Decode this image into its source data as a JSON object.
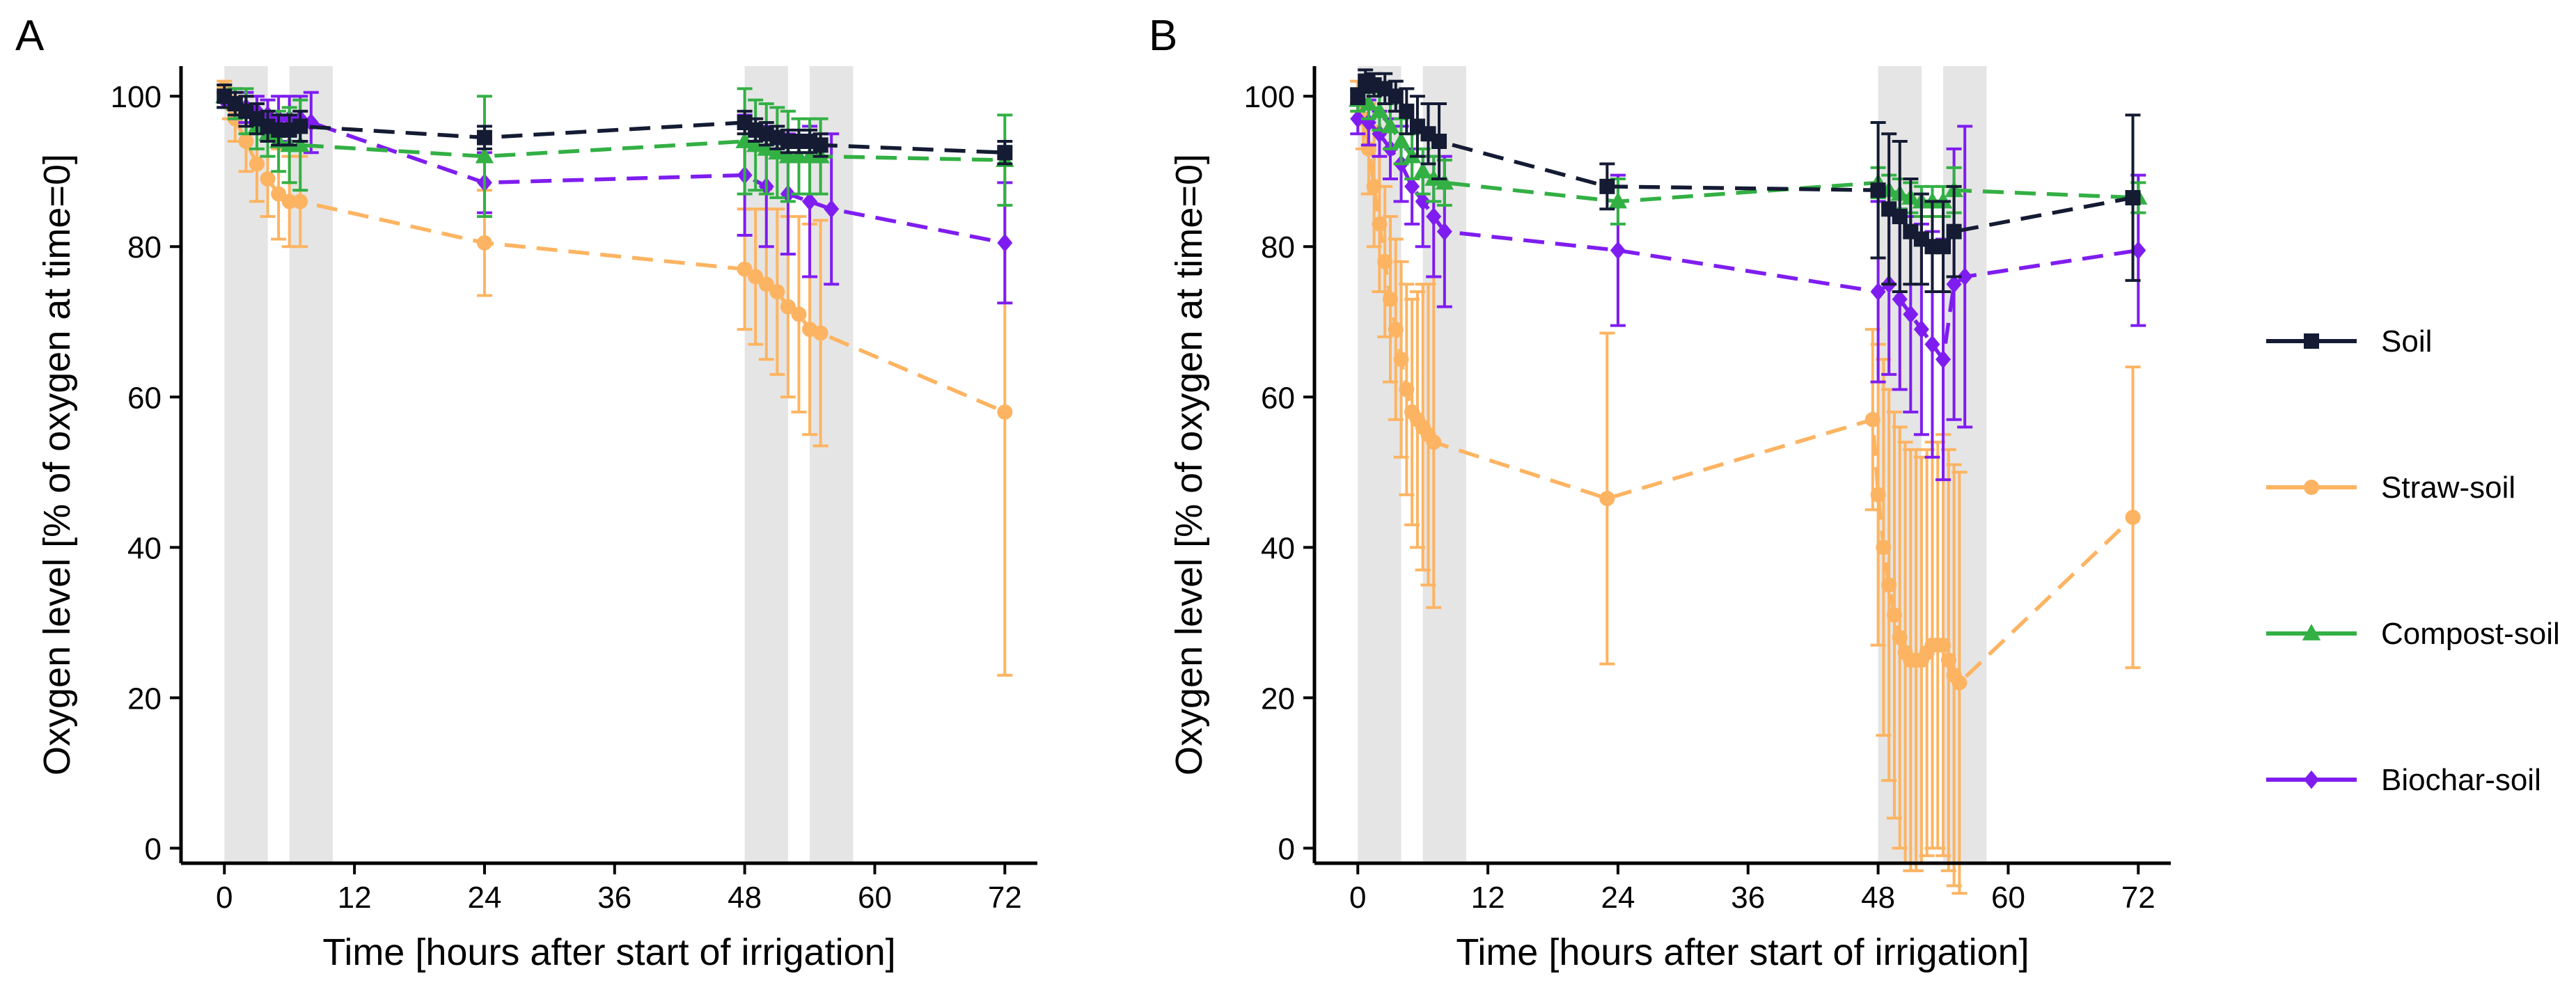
{
  "chart_data": [
    {
      "type": "line",
      "panel_label": "A",
      "xlabel": "Time [hours after start of irrigation]",
      "ylabel": "Oxygen level [% of oxygen at time=0]",
      "xlim": [
        -4,
        75
      ],
      "ylim": [
        -2,
        104
      ],
      "xticks": [
        0,
        12,
        24,
        36,
        48,
        60,
        72
      ],
      "yticks": [
        0,
        20,
        40,
        60,
        80,
        100
      ],
      "irrigation_periods": [
        [
          0,
          4
        ],
        [
          6,
          10
        ],
        [
          48,
          52
        ],
        [
          54,
          58
        ]
      ],
      "series": [
        {
          "name": "Soil",
          "x": [
            0,
            1,
            2,
            3,
            4,
            5,
            6,
            7,
            24,
            48,
            49,
            50,
            51,
            52,
            53,
            54,
            55,
            72
          ],
          "y": [
            100,
            99,
            98,
            97,
            96,
            95.5,
            95.5,
            96,
            94.5,
            96.5,
            95.5,
            95,
            94.5,
            94,
            94,
            94,
            93.5,
            92.5
          ],
          "err": [
            1.5,
            1.5,
            2,
            2,
            2,
            2,
            2,
            2,
            1.5,
            1.5,
            1.5,
            1.5,
            1.5,
            1.5,
            1.5,
            1.5,
            1.5,
            1.5
          ]
        },
        {
          "name": "Straw-soil",
          "x": [
            0,
            0.5,
            1,
            2,
            3,
            4,
            5,
            6,
            7,
            24,
            48,
            49,
            50,
            51,
            52,
            53,
            54,
            55,
            72
          ],
          "y": [
            101,
            99,
            97,
            94,
            91,
            89,
            87,
            86,
            86,
            80.5,
            77,
            76,
            75,
            74,
            72,
            71,
            69,
            68.5,
            58
          ],
          "err": [
            1,
            2,
            3,
            4,
            5,
            5,
            6,
            6,
            6,
            7,
            8,
            9,
            10,
            11,
            12,
            13,
            14,
            15,
            35
          ]
        },
        {
          "name": "Compost-soil",
          "x": [
            0,
            1,
            2,
            3,
            4,
            5,
            6,
            7,
            24,
            48,
            49,
            50,
            51,
            52,
            53,
            54,
            55,
            72
          ],
          "y": [
            100,
            99,
            98,
            96,
            95,
            94,
            93.5,
            93.5,
            92,
            94,
            93.5,
            93,
            92.5,
            92,
            92,
            92,
            92,
            91.5
          ],
          "err": [
            1.5,
            2,
            3,
            3,
            3,
            4,
            5,
            6,
            8,
            7,
            6,
            6,
            6,
            6,
            5,
            5,
            5,
            6
          ]
        },
        {
          "name": "Biochar-soil",
          "x": [
            0,
            1,
            2,
            3,
            4,
            5,
            6,
            7,
            8,
            24,
            48,
            50,
            52,
            54,
            56,
            72
          ],
          "y": [
            99.5,
            99,
            98.5,
            98,
            97.5,
            97,
            97,
            97,
            96.5,
            88.5,
            89.5,
            88,
            87,
            86,
            85,
            80.5
          ],
          "err": [
            1,
            2,
            2,
            2,
            2,
            3,
            3,
            3,
            4,
            4,
            8,
            8,
            8,
            10,
            10,
            8
          ]
        }
      ]
    },
    {
      "type": "line",
      "panel_label": "B",
      "xlabel": "Time [hours after start of irrigation]",
      "ylabel": "Oxygen level [% of oxygen at time=0]",
      "xlim": [
        -4,
        75
      ],
      "ylim": [
        -2,
        104
      ],
      "xticks": [
        0,
        12,
        24,
        36,
        48,
        60,
        72
      ],
      "yticks": [
        0,
        20,
        40,
        60,
        80,
        100
      ],
      "irrigation_periods": [
        [
          0,
          4
        ],
        [
          6,
          10
        ],
        [
          48,
          52
        ],
        [
          54,
          58
        ]
      ],
      "series": [
        {
          "name": "Soil",
          "x": [
            0,
            0.7,
            1.5,
            2.5,
            3.5,
            4.5,
            5.5,
            6.5,
            7.5,
            23,
            48,
            49,
            50,
            51,
            52,
            53,
            54,
            55,
            71.5
          ],
          "y": [
            100,
            102,
            101.5,
            101,
            100,
            98,
            96,
            95,
            94,
            88,
            87.5,
            85,
            84,
            82,
            81,
            80,
            80,
            82,
            86.5
          ],
          "err": [
            1,
            1.5,
            1.5,
            2,
            2,
            3,
            4,
            4,
            5,
            3,
            9,
            10,
            10,
            7,
            6,
            6,
            6,
            6,
            11
          ]
        },
        {
          "name": "Straw-soil",
          "x": [
            0,
            0.5,
            1,
            1.5,
            2,
            2.5,
            3,
            3.5,
            4,
            4.5,
            5,
            5.5,
            6,
            6.5,
            7,
            23,
            47.5,
            48,
            48.5,
            49,
            49.5,
            50,
            50.5,
            51,
            51.5,
            52,
            52.5,
            53,
            53.5,
            54,
            54.5,
            55,
            55.5,
            71.5
          ],
          "y": [
            100,
            97,
            93,
            88,
            83,
            78,
            73,
            69,
            65,
            61,
            58,
            57,
            56,
            55,
            54,
            46.5,
            57,
            47,
            40,
            35,
            31,
            28,
            26,
            25,
            25,
            25,
            26,
            27,
            27,
            27,
            25,
            23,
            22,
            44
          ],
          "err": [
            2,
            4,
            6,
            8,
            9,
            10,
            11,
            12,
            13,
            14,
            15,
            17,
            19,
            20,
            22,
            22,
            12,
            20,
            25,
            26,
            27,
            28,
            28,
            28,
            28,
            27,
            27,
            27,
            27,
            28,
            28,
            28,
            28,
            20
          ]
        },
        {
          "name": "Compost-soil",
          "x": [
            0,
            1,
            2,
            3,
            4,
            5,
            6,
            7,
            8,
            24,
            48,
            49,
            50,
            51,
            52,
            53,
            54,
            55,
            72
          ],
          "y": [
            99.5,
            99,
            98,
            96,
            94,
            92,
            90,
            89,
            88.5,
            86,
            88.5,
            87.5,
            87,
            86.5,
            86,
            86,
            86,
            87.5,
            86.5
          ],
          "err": [
            1.5,
            2,
            2.5,
            3,
            3,
            3,
            3,
            3,
            3,
            3,
            2,
            2,
            2,
            2,
            2,
            2,
            2,
            3,
            2
          ]
        },
        {
          "name": "Biochar-soil",
          "x": [
            0,
            1,
            2,
            3,
            4,
            5,
            6,
            7,
            8,
            24,
            48,
            49,
            50,
            51,
            52,
            53,
            54,
            55,
            56,
            72
          ],
          "y": [
            97,
            96.5,
            95,
            93,
            91,
            88,
            86,
            84,
            82,
            79.5,
            74,
            75,
            73,
            71,
            69,
            67,
            65,
            75,
            76,
            79.5
          ],
          "err": [
            2,
            3,
            3,
            4,
            5,
            5,
            6,
            8,
            10,
            10,
            12,
            12,
            12,
            13,
            14,
            15,
            16,
            18,
            20,
            10
          ]
        }
      ]
    }
  ],
  "legend": {
    "items": [
      {
        "label": "Soil",
        "color": "#141b33",
        "marker": "square"
      },
      {
        "label": "Straw-soil",
        "color": "#fdb462",
        "marker": "circle"
      },
      {
        "label": "Compost-soil",
        "color": "#33b044",
        "marker": "triangle"
      },
      {
        "label": "Biochar-soil",
        "color": "#7f1df0",
        "marker": "diamond"
      }
    ]
  },
  "colors": {
    "irrigation_band": "#e5e5e5",
    "axis": "#000000"
  }
}
